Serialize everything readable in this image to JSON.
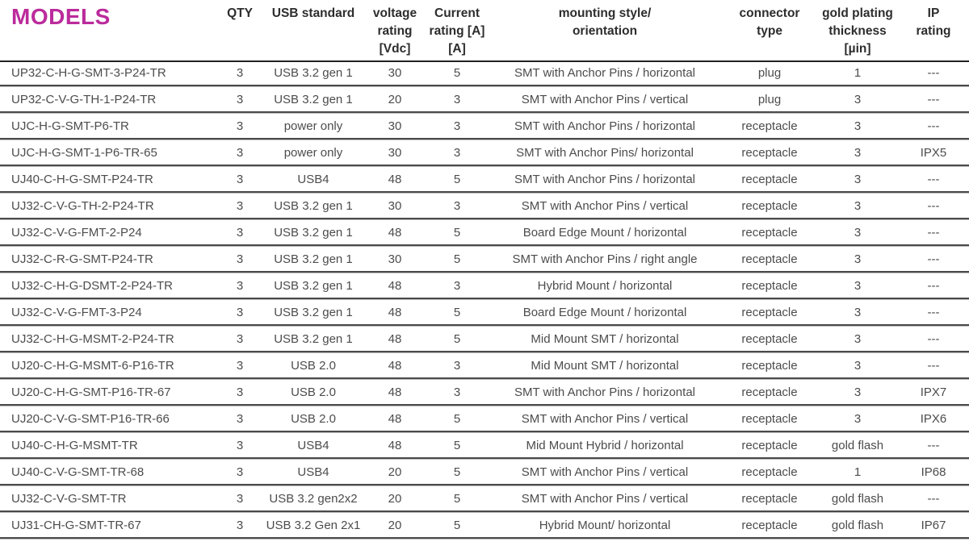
{
  "colors": {
    "accent": "#bb2b9c",
    "header_text": "#2d2d2d",
    "body_text": "#4c4c4c",
    "header_line": "#222222",
    "row_line_dark": "#4a4a4a",
    "row_line_light": "#bdbdbd"
  },
  "table": {
    "title": "MODELS",
    "columns": [
      {
        "id": "model",
        "header_lines": []
      },
      {
        "id": "qty",
        "header_lines": [
          "QTY"
        ]
      },
      {
        "id": "usb-standard",
        "header_lines": [
          "USB standard"
        ]
      },
      {
        "id": "voltage-rating",
        "header_lines": [
          "voltage",
          "rating",
          "[Vdc]"
        ]
      },
      {
        "id": "current-rating",
        "header_lines": [
          "Current",
          "rating [A]",
          "[A]"
        ]
      },
      {
        "id": "mounting-style",
        "header_lines": [
          "mounting style/",
          "orientation"
        ]
      },
      {
        "id": "connector-type",
        "header_lines": [
          "connector",
          "type"
        ]
      },
      {
        "id": "gold-plating",
        "header_lines": [
          "gold plating",
          "thickness",
          "[µin]"
        ]
      },
      {
        "id": "ip-rating",
        "header_lines": [
          "IP",
          "rating"
        ]
      }
    ],
    "rows": [
      [
        "UP32-C-H-G-SMT-3-P24-TR",
        "3",
        "USB 3.2 gen 1",
        "30",
        "5",
        "SMT with Anchor Pins / horizontal",
        "plug",
        "1",
        "---"
      ],
      [
        "UP32-C-V-G-TH-1-P24-TR",
        "3",
        "USB 3.2 gen 1",
        "20",
        "3",
        "SMT with Anchor Pins / vertical",
        "plug",
        "3",
        "---"
      ],
      [
        "UJC-H-G-SMT-P6-TR",
        "3",
        "power only",
        "30",
        "3",
        "SMT with Anchor Pins / horizontal",
        "receptacle",
        "3",
        "---"
      ],
      [
        "UJC-H-G-SMT-1-P6-TR-65",
        "3",
        "power only",
        "30",
        "3",
        "SMT with Anchor Pins/ horizontal",
        "receptacle",
        "3",
        "IPX5"
      ],
      [
        "UJ40-C-H-G-SMT-P24-TR",
        "3",
        "USB4",
        "48",
        "5",
        "SMT with Anchor Pins / horizontal",
        "receptacle",
        "3",
        "---"
      ],
      [
        "UJ32-C-V-G-TH-2-P24-TR",
        "3",
        "USB 3.2 gen 1",
        "30",
        "3",
        "SMT with Anchor Pins / vertical",
        "receptacle",
        "3",
        "---"
      ],
      [
        "UJ32-C-V-G-FMT-2-P24",
        "3",
        "USB 3.2 gen 1",
        "48",
        "5",
        "Board Edge Mount / horizontal",
        "receptacle",
        "3",
        "---"
      ],
      [
        "UJ32-C-R-G-SMT-P24-TR",
        "3",
        "USB 3.2 gen 1",
        "30",
        "5",
        "SMT with Anchor Pins / right angle",
        "receptacle",
        "3",
        "---"
      ],
      [
        "UJ32-C-H-G-DSMT-2-P24-TR",
        "3",
        "USB 3.2 gen 1",
        "48",
        "3",
        "Hybrid Mount / horizontal",
        "receptacle",
        "3",
        "---"
      ],
      [
        "UJ32-C-V-G-FMT-3-P24",
        "3",
        "USB 3.2 gen 1",
        "48",
        "5",
        "Board Edge Mount / horizontal",
        "receptacle",
        "3",
        "---"
      ],
      [
        "UJ32-C-H-G-MSMT-2-P24-TR",
        "3",
        "USB 3.2 gen 1",
        "48",
        "5",
        "Mid Mount SMT / horizontal",
        "receptacle",
        "3",
        "---"
      ],
      [
        "UJ20-C-H-G-MSMT-6-P16-TR",
        "3",
        "USB 2.0",
        "48",
        "3",
        "Mid Mount SMT / horizontal",
        "receptacle",
        "3",
        "---"
      ],
      [
        "UJ20-C-H-G-SMT-P16-TR-67",
        "3",
        "USB 2.0",
        "48",
        "3",
        "SMT with Anchor Pins / horizontal",
        "receptacle",
        "3",
        "IPX7"
      ],
      [
        "UJ20-C-V-G-SMT-P16-TR-66",
        "3",
        "USB 2.0",
        "48",
        "5",
        "SMT with Anchor Pins / vertical",
        "receptacle",
        "3",
        "IPX6"
      ],
      [
        "UJ40-C-H-G-MSMT-TR",
        "3",
        "USB4",
        "48",
        "5",
        "Mid Mount Hybrid / horizontal",
        "receptacle",
        "gold flash",
        "---"
      ],
      [
        "UJ40-C-V-G-SMT-TR-68",
        "3",
        "USB4",
        "20",
        "5",
        "SMT with Anchor Pins / vertical",
        "receptacle",
        "1",
        "IP68"
      ],
      [
        "UJ32-C-V-G-SMT-TR",
        "3",
        "USB 3.2 gen2x2",
        "20",
        "5",
        "SMT with Anchor Pins / vertical",
        "receptacle",
        "gold flash",
        "---"
      ],
      [
        "UJ31-CH-G-SMT-TR-67",
        "3",
        "USB 3.2 Gen 2x1",
        "20",
        "5",
        "Hybrid Mount/ horizontal",
        "receptacle",
        "gold flash",
        "IP67"
      ]
    ]
  }
}
